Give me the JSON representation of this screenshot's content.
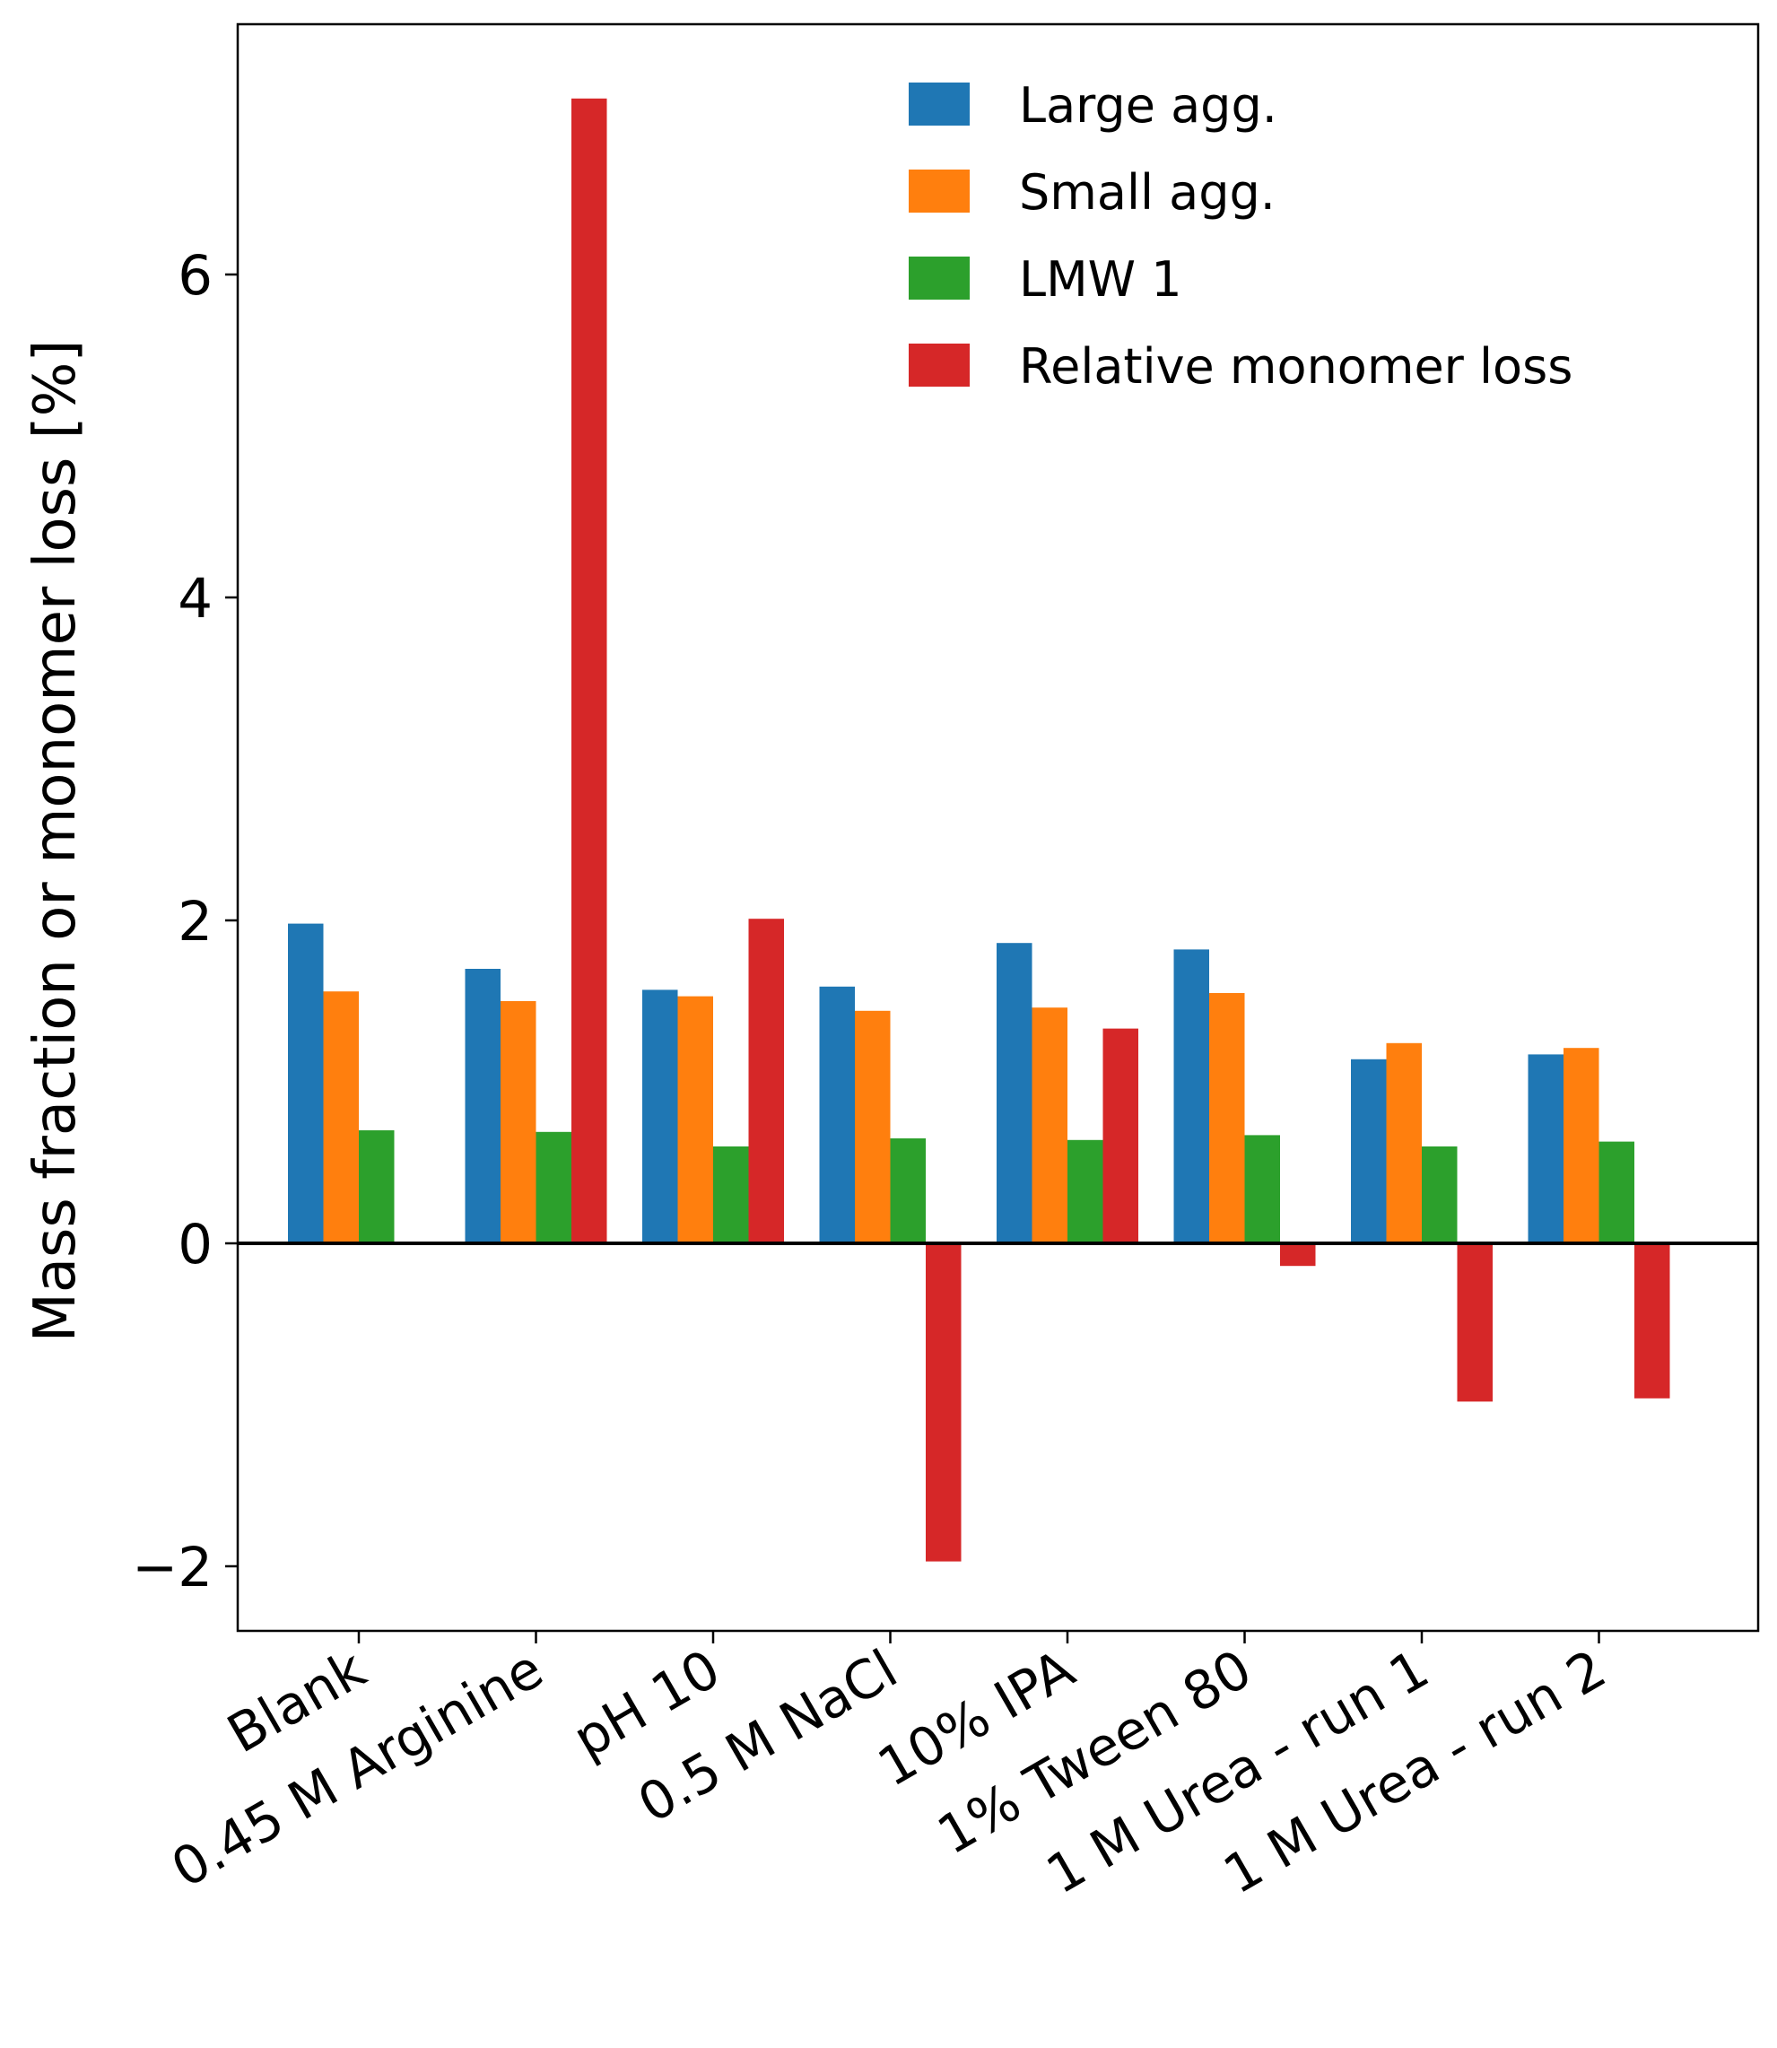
{
  "chart_data": {
    "type": "bar",
    "title": "",
    "xlabel": "",
    "ylabel": "Mass fraction or monomer loss [%]",
    "ylim": [
      -2.4,
      7.55
    ],
    "yticks": [
      -2,
      0,
      2,
      4,
      6
    ],
    "ytick_labels": [
      "−2",
      "0",
      "2",
      "4",
      "6"
    ],
    "grid": false,
    "legend_position": "top-right",
    "zero_line": true,
    "categories": [
      "Blank",
      "0.45 M Arginine",
      "pH 10",
      "0.5 M NaCl",
      "10% IPA",
      "1% Tween 80",
      "1 M Urea - run 1",
      "1 M Urea - run 2"
    ],
    "series": [
      {
        "name": "Large agg.",
        "color": "#1f77b4",
        "values": [
          1.98,
          1.7,
          1.57,
          1.59,
          1.86,
          1.82,
          1.14,
          1.17
        ]
      },
      {
        "name": "Small agg.",
        "color": "#ff7f0e",
        "values": [
          1.56,
          1.5,
          1.53,
          1.44,
          1.46,
          1.55,
          1.24,
          1.21
        ]
      },
      {
        "name": "LMW 1",
        "color": "#2ca02c",
        "values": [
          0.7,
          0.69,
          0.6,
          0.65,
          0.64,
          0.67,
          0.6,
          0.63
        ]
      },
      {
        "name": "Relative monomer loss",
        "color": "#d62728",
        "values": [
          0.0,
          7.09,
          2.01,
          -1.97,
          1.33,
          -0.14,
          -0.98,
          -0.96
        ]
      }
    ]
  }
}
